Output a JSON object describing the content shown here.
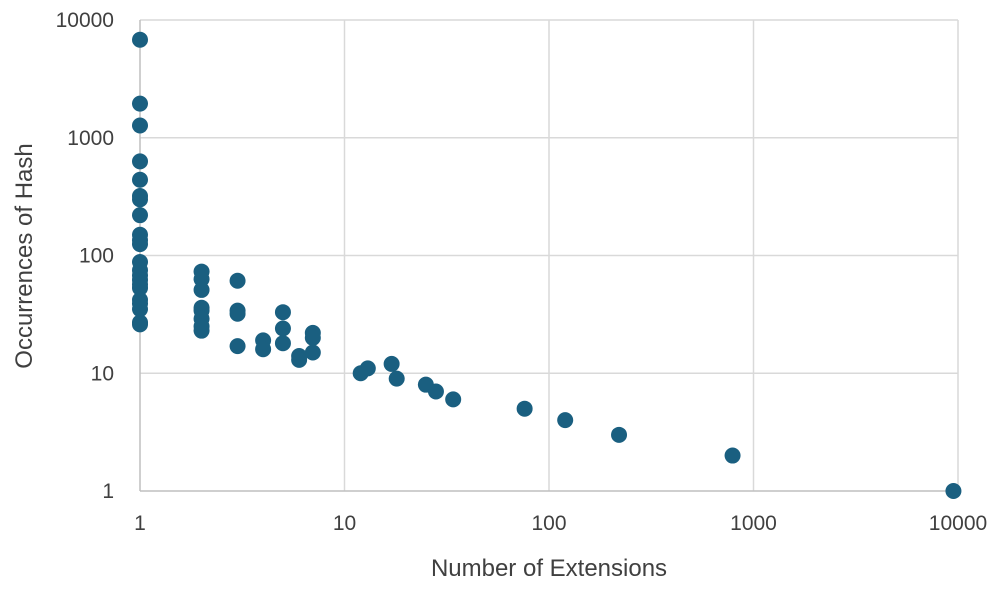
{
  "chart_data": {
    "type": "scatter",
    "title": "",
    "xlabel": "Number of Extensions",
    "ylabel": "Occurrences of Hash",
    "x_scale": "log",
    "y_scale": "log",
    "xlim": [
      1,
      10000
    ],
    "ylim": [
      1,
      10000
    ],
    "x_ticks": [
      "1",
      "10",
      "100",
      "1000",
      "10000"
    ],
    "y_ticks": [
      "1",
      "10",
      "100",
      "1000",
      "10000"
    ],
    "grid": true,
    "legend": "none",
    "marker_color": "#1a5f80",
    "series": [
      {
        "points": [
          {
            "x": 1,
            "y": 6800
          },
          {
            "x": 1,
            "y": 1950
          },
          {
            "x": 1,
            "y": 1270
          },
          {
            "x": 1,
            "y": 630
          },
          {
            "x": 1,
            "y": 440
          },
          {
            "x": 1,
            "y": 320
          },
          {
            "x": 1,
            "y": 300
          },
          {
            "x": 1,
            "y": 220
          },
          {
            "x": 1,
            "y": 150
          },
          {
            "x": 1,
            "y": 135
          },
          {
            "x": 1,
            "y": 125
          },
          {
            "x": 1,
            "y": 88
          },
          {
            "x": 1,
            "y": 75
          },
          {
            "x": 1,
            "y": 68
          },
          {
            "x": 1,
            "y": 62
          },
          {
            "x": 1,
            "y": 57
          },
          {
            "x": 1,
            "y": 53
          },
          {
            "x": 1,
            "y": 42
          },
          {
            "x": 1,
            "y": 39
          },
          {
            "x": 1,
            "y": 35
          },
          {
            "x": 1,
            "y": 27
          },
          {
            "x": 1,
            "y": 26
          },
          {
            "x": 2,
            "y": 73
          },
          {
            "x": 2,
            "y": 63
          },
          {
            "x": 2,
            "y": 51
          },
          {
            "x": 2,
            "y": 36
          },
          {
            "x": 2,
            "y": 34
          },
          {
            "x": 2,
            "y": 29
          },
          {
            "x": 2,
            "y": 25
          },
          {
            "x": 2,
            "y": 23
          },
          {
            "x": 3,
            "y": 61
          },
          {
            "x": 3,
            "y": 34
          },
          {
            "x": 3,
            "y": 32
          },
          {
            "x": 3,
            "y": 17
          },
          {
            "x": 4,
            "y": 19
          },
          {
            "x": 4,
            "y": 16
          },
          {
            "x": 5,
            "y": 33
          },
          {
            "x": 5,
            "y": 24
          },
          {
            "x": 5,
            "y": 18
          },
          {
            "x": 6,
            "y": 14
          },
          {
            "x": 6,
            "y": 13
          },
          {
            "x": 7,
            "y": 22
          },
          {
            "x": 7,
            "y": 20
          },
          {
            "x": 7,
            "y": 15
          },
          {
            "x": 12,
            "y": 10
          },
          {
            "x": 13,
            "y": 11
          },
          {
            "x": 17,
            "y": 12
          },
          {
            "x": 18,
            "y": 9
          },
          {
            "x": 25,
            "y": 8
          },
          {
            "x": 28,
            "y": 7
          },
          {
            "x": 34,
            "y": 6
          },
          {
            "x": 76,
            "y": 5
          },
          {
            "x": 120,
            "y": 4
          },
          {
            "x": 220,
            "y": 3
          },
          {
            "x": 790,
            "y": 2
          },
          {
            "x": 9500,
            "y": 1
          }
        ]
      }
    ]
  }
}
